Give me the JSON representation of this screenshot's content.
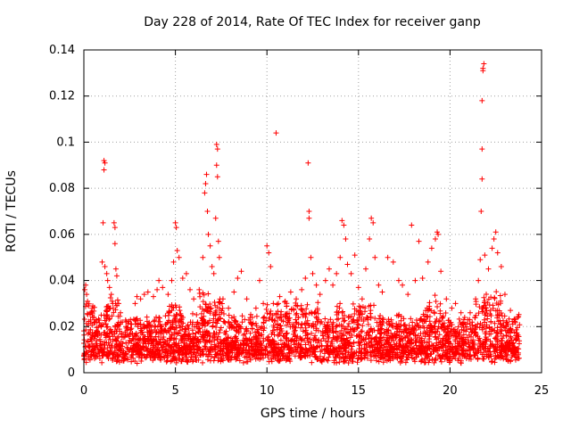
{
  "chart_data": {
    "type": "scatter",
    "title": "Day 228 of 2014, Rate Of TEC Index for receiver ganp",
    "xlabel": "GPS time / hours",
    "ylabel": "ROTI / TECUs",
    "xlim": [
      0,
      25
    ],
    "ylim": [
      0,
      0.14
    ],
    "xticks": [
      "0",
      "5",
      "10",
      "15",
      "20",
      "25"
    ],
    "yticks": [
      "0",
      "0.02",
      "0.04",
      "0.06",
      "0.08",
      "0.1",
      "0.12",
      "0.14"
    ],
    "grid": true,
    "marker": "+",
    "color": "#ff0000",
    "series": [
      {
        "name": "ROTI",
        "points": [
          [
            0.05,
            0.036
          ],
          [
            0.1,
            0.038
          ],
          [
            0.15,
            0.034
          ],
          [
            0.2,
            0.031
          ],
          [
            0.25,
            0.029
          ],
          [
            0.35,
            0.026
          ],
          [
            0.45,
            0.028
          ],
          [
            0.55,
            0.024
          ],
          [
            1.1,
            0.092
          ],
          [
            1.15,
            0.091
          ],
          [
            1.1,
            0.088
          ],
          [
            1.05,
            0.065
          ],
          [
            1.0,
            0.048
          ],
          [
            1.15,
            0.046
          ],
          [
            1.25,
            0.043
          ],
          [
            1.3,
            0.04
          ],
          [
            1.4,
            0.037
          ],
          [
            1.5,
            0.034
          ],
          [
            1.55,
            0.031
          ],
          [
            1.6,
            0.028
          ],
          [
            1.65,
            0.065
          ],
          [
            1.7,
            0.063
          ],
          [
            1.7,
            0.056
          ],
          [
            1.75,
            0.045
          ],
          [
            1.8,
            0.042
          ],
          [
            1.9,
            0.03
          ],
          [
            2.0,
            0.026
          ],
          [
            2.1,
            0.022
          ],
          [
            2.3,
            0.02
          ],
          [
            2.6,
            0.021
          ],
          [
            2.8,
            0.03
          ],
          [
            2.9,
            0.033
          ],
          [
            3.1,
            0.032
          ],
          [
            3.3,
            0.034
          ],
          [
            3.5,
            0.035
          ],
          [
            3.8,
            0.033
          ],
          [
            4.0,
            0.036
          ],
          [
            4.1,
            0.04
          ],
          [
            4.3,
            0.037
          ],
          [
            4.6,
            0.034
          ],
          [
            4.8,
            0.04
          ],
          [
            4.9,
            0.048
          ],
          [
            5.0,
            0.065
          ],
          [
            5.05,
            0.063
          ],
          [
            5.1,
            0.053
          ],
          [
            5.2,
            0.05
          ],
          [
            5.4,
            0.041
          ],
          [
            5.6,
            0.043
          ],
          [
            5.8,
            0.036
          ],
          [
            6.0,
            0.032
          ],
          [
            6.3,
            0.036
          ],
          [
            6.5,
            0.05
          ],
          [
            6.6,
            0.078
          ],
          [
            6.65,
            0.082
          ],
          [
            6.7,
            0.086
          ],
          [
            6.75,
            0.07
          ],
          [
            6.8,
            0.06
          ],
          [
            6.9,
            0.055
          ],
          [
            7.0,
            0.046
          ],
          [
            7.1,
            0.043
          ],
          [
            7.2,
            0.067
          ],
          [
            7.25,
            0.099
          ],
          [
            7.3,
            0.097
          ],
          [
            7.25,
            0.09
          ],
          [
            7.3,
            0.085
          ],
          [
            7.35,
            0.057
          ],
          [
            7.4,
            0.05
          ],
          [
            7.6,
            0.032
          ],
          [
            7.9,
            0.028
          ],
          [
            8.2,
            0.035
          ],
          [
            8.4,
            0.041
          ],
          [
            8.6,
            0.044
          ],
          [
            8.9,
            0.032
          ],
          [
            9.2,
            0.024
          ],
          [
            9.4,
            0.028
          ],
          [
            9.6,
            0.04
          ],
          [
            9.8,
            0.03
          ],
          [
            10.0,
            0.055
          ],
          [
            10.1,
            0.052
          ],
          [
            10.2,
            0.046
          ],
          [
            10.35,
            0.03
          ],
          [
            10.5,
            0.104
          ],
          [
            10.7,
            0.033
          ],
          [
            11.0,
            0.031
          ],
          [
            11.3,
            0.035
          ],
          [
            11.6,
            0.032
          ],
          [
            11.9,
            0.036
          ],
          [
            12.1,
            0.041
          ],
          [
            12.25,
            0.091
          ],
          [
            12.3,
            0.07
          ],
          [
            12.3,
            0.067
          ],
          [
            12.4,
            0.05
          ],
          [
            12.5,
            0.043
          ],
          [
            12.7,
            0.038
          ],
          [
            12.9,
            0.034
          ],
          [
            13.2,
            0.04
          ],
          [
            13.4,
            0.045
          ],
          [
            13.6,
            0.038
          ],
          [
            13.8,
            0.043
          ],
          [
            14.0,
            0.05
          ],
          [
            14.1,
            0.066
          ],
          [
            14.2,
            0.064
          ],
          [
            14.3,
            0.058
          ],
          [
            14.4,
            0.047
          ],
          [
            14.6,
            0.043
          ],
          [
            14.8,
            0.051
          ],
          [
            15.0,
            0.037
          ],
          [
            15.2,
            0.032
          ],
          [
            15.4,
            0.045
          ],
          [
            15.6,
            0.058
          ],
          [
            15.7,
            0.067
          ],
          [
            15.8,
            0.065
          ],
          [
            15.9,
            0.05
          ],
          [
            16.1,
            0.038
          ],
          [
            16.3,
            0.035
          ],
          [
            16.6,
            0.05
          ],
          [
            16.9,
            0.048
          ],
          [
            17.2,
            0.04
          ],
          [
            17.4,
            0.038
          ],
          [
            17.7,
            0.034
          ],
          [
            17.9,
            0.064
          ],
          [
            18.1,
            0.04
          ],
          [
            18.3,
            0.057
          ],
          [
            18.5,
            0.041
          ],
          [
            18.8,
            0.048
          ],
          [
            19.0,
            0.054
          ],
          [
            19.2,
            0.058
          ],
          [
            19.3,
            0.061
          ],
          [
            19.35,
            0.06
          ],
          [
            19.5,
            0.044
          ],
          [
            19.8,
            0.032
          ],
          [
            20.1,
            0.028
          ],
          [
            20.3,
            0.03
          ],
          [
            20.6,
            0.026
          ],
          [
            20.8,
            0.024
          ],
          [
            21.1,
            0.026
          ],
          [
            21.4,
            0.032
          ],
          [
            21.55,
            0.04
          ],
          [
            21.65,
            0.049
          ],
          [
            21.7,
            0.07
          ],
          [
            21.75,
            0.084
          ],
          [
            21.75,
            0.097
          ],
          [
            21.75,
            0.118
          ],
          [
            21.8,
            0.131
          ],
          [
            21.8,
            0.132
          ],
          [
            21.85,
            0.134
          ],
          [
            21.9,
            0.051
          ],
          [
            22.1,
            0.045
          ],
          [
            22.3,
            0.054
          ],
          [
            22.4,
            0.058
          ],
          [
            22.5,
            0.061
          ],
          [
            22.6,
            0.052
          ],
          [
            22.8,
            0.046
          ],
          [
            23.0,
            0.034
          ],
          [
            23.3,
            0.027
          ],
          [
            23.5,
            0.023
          ],
          [
            23.7,
            0.024
          ]
        ]
      }
    ]
  }
}
